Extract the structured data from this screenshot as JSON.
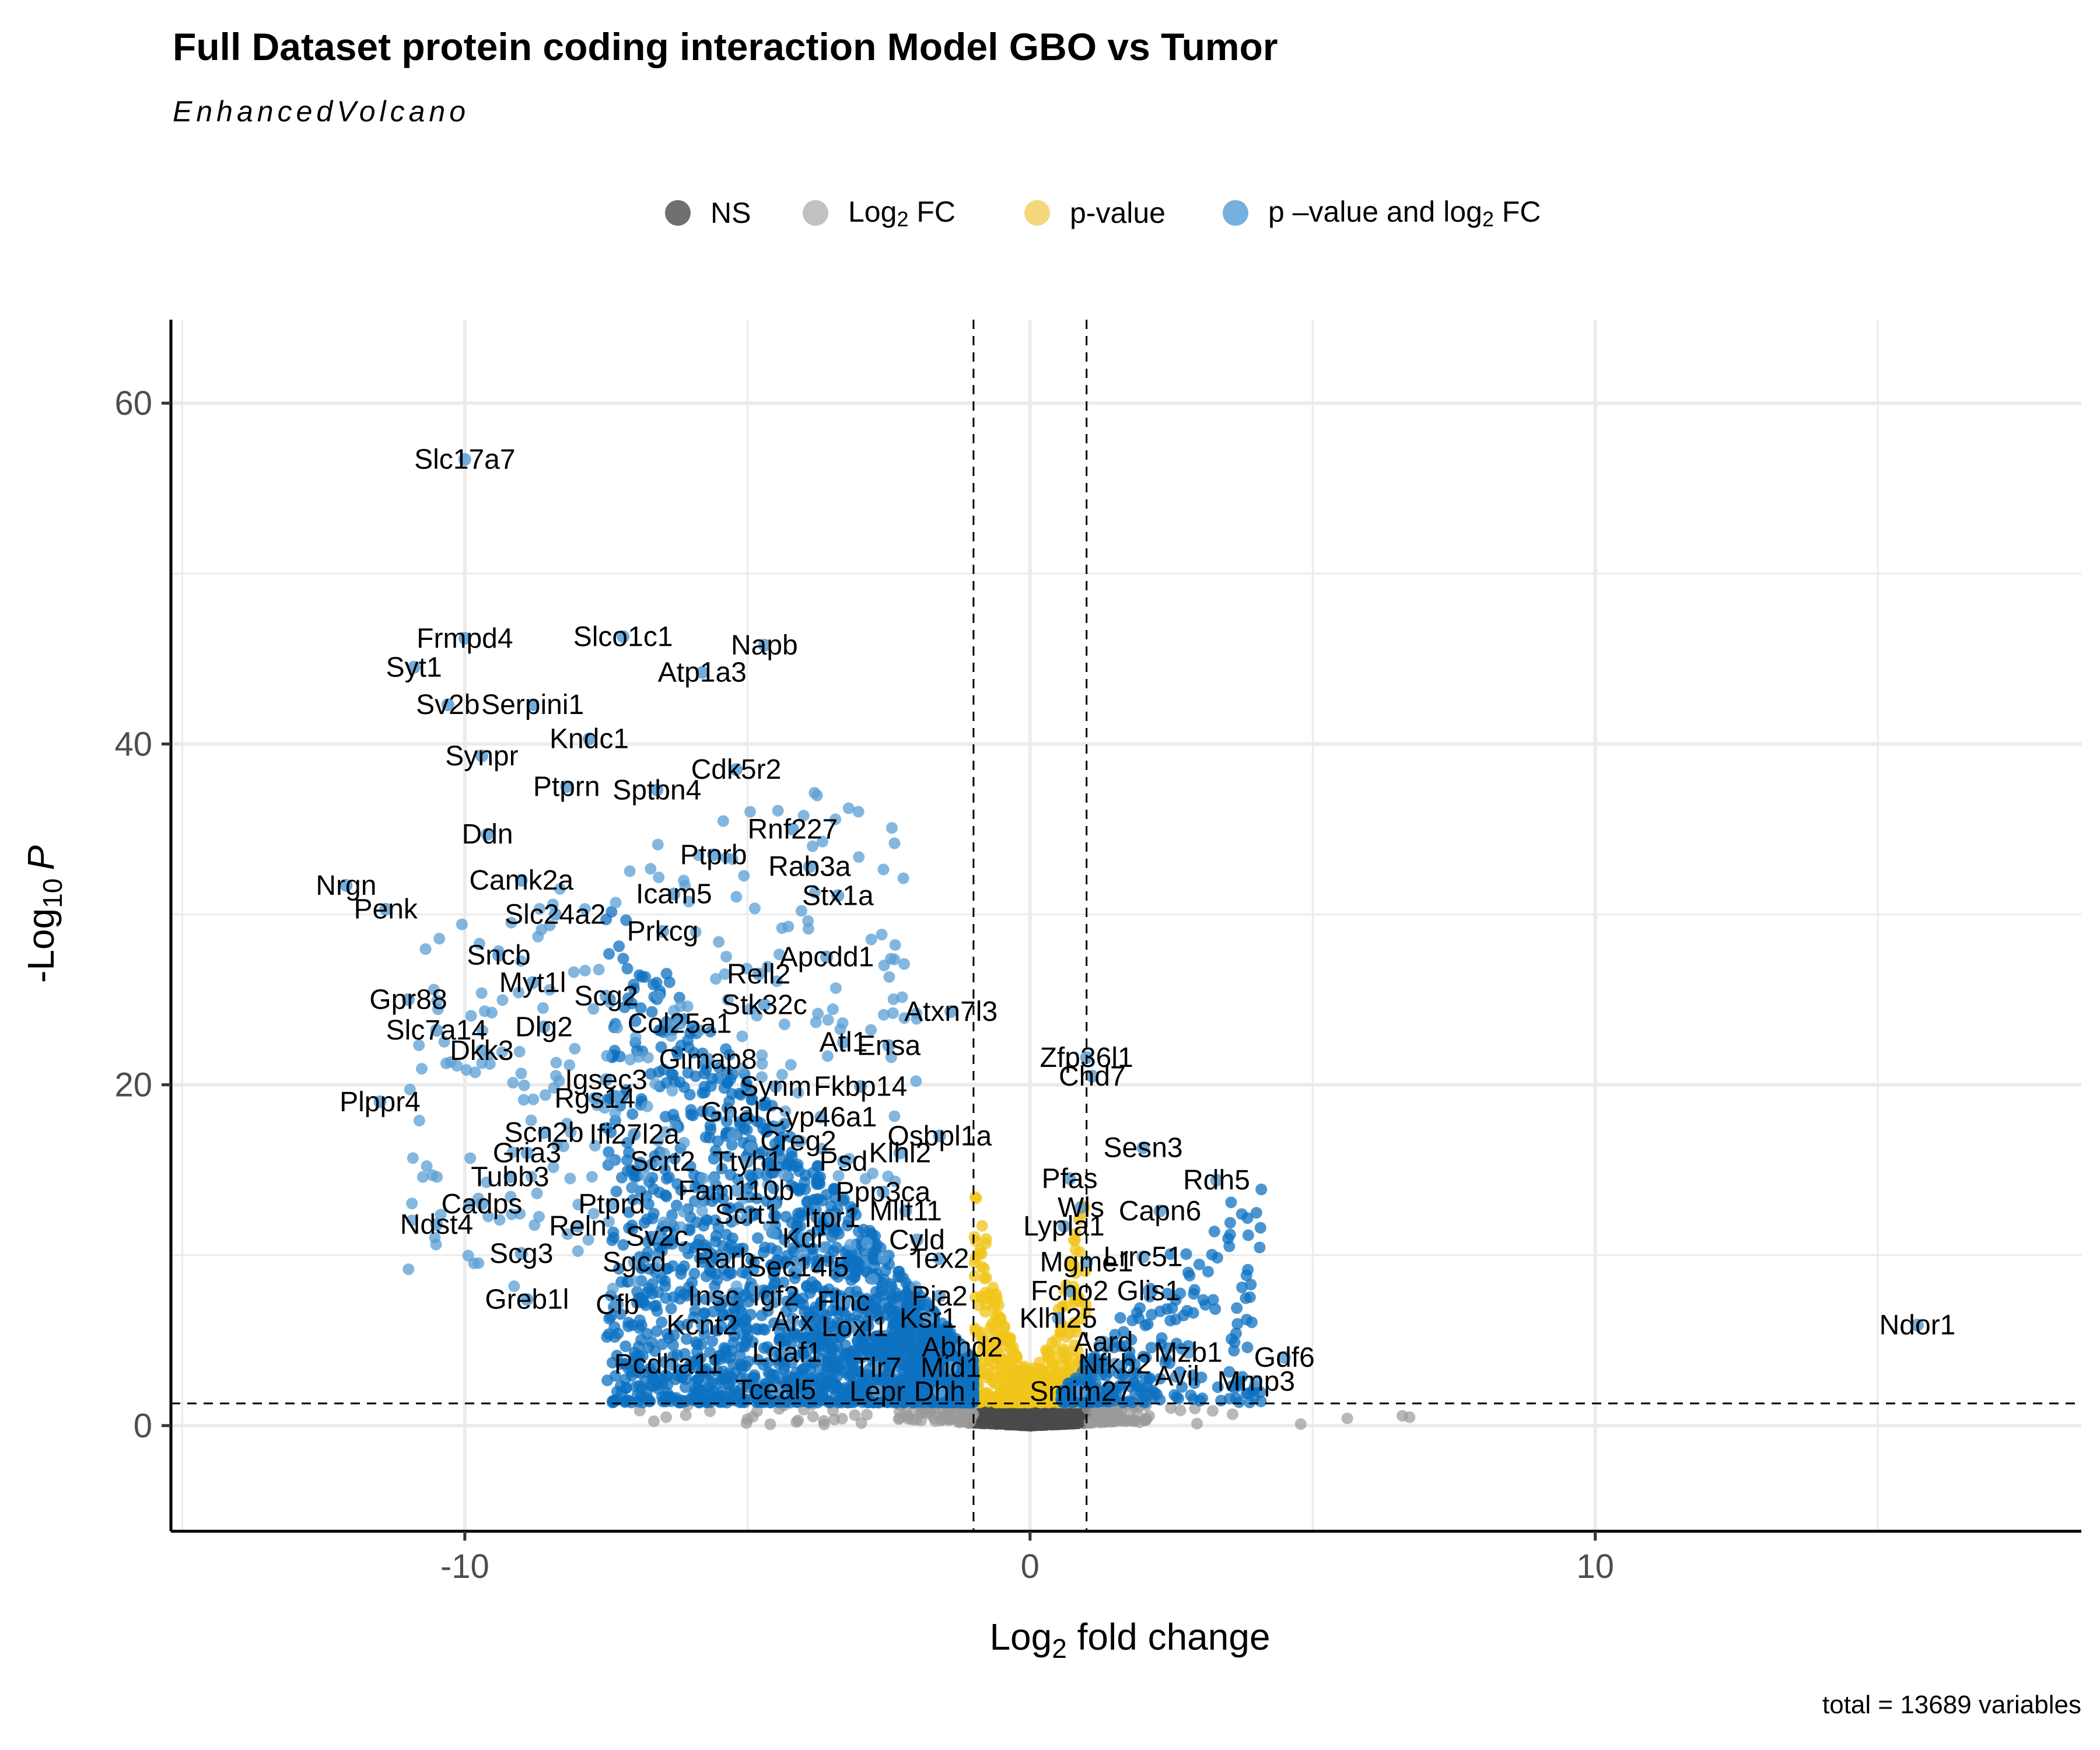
{
  "chart_data": {
    "type": "scatter",
    "title": "Full Dataset protein coding interaction Model GBO vs Tumor",
    "subtitle": "EnhancedVolcano",
    "caption": "total = 13689 variables",
    "xlabel_main": "Log",
    "xlabel_sub": "2",
    "xlabel_rest": " fold change",
    "ylabel_main": "-Log",
    "ylabel_sub": "10",
    "ylabel_var": "P",
    "xlim": [
      -15.2,
      18.6
    ],
    "ylim": [
      -6.2,
      64.9
    ],
    "x_ticks": [
      -10,
      0,
      10
    ],
    "x_tick_labels": [
      "-10",
      "0",
      "10"
    ],
    "y_ticks": [
      0,
      20,
      40,
      60
    ],
    "y_tick_labels": [
      "0",
      "20",
      "40",
      "60"
    ],
    "grid": true,
    "legend_position": "top",
    "fc_cutoff": [
      -1,
      1
    ],
    "p_cutoff_neglog10": 1.3,
    "legend": [
      {
        "label_main": "NS",
        "label_sub": "",
        "label_rest": "",
        "color": "#3f3f3f"
      },
      {
        "label_main": "Log",
        "label_sub": "2",
        "label_rest": " FC",
        "color": "#a6a6a6"
      },
      {
        "label_main": "p-value",
        "label_sub": "",
        "label_rest": "",
        "color": "#f2c744"
      },
      {
        "label_main": "p –value and log",
        "label_sub": "2",
        "label_rest": " FC",
        "color": "#3b8ed0"
      }
    ],
    "colors": {
      "NS": "#4a4a4a",
      "FC": "#9a9a9a",
      "P": "#f0c419",
      "both": "#0e72c2",
      "both_labeled": "#5a9fd6"
    },
    "labeled_points": [
      {
        "gene": "Slc17a7",
        "x": -10.0,
        "y": 56.7
      },
      {
        "gene": "Frmpd4",
        "x": -10.0,
        "y": 46.2
      },
      {
        "gene": "Slco1c1",
        "x": -7.2,
        "y": 46.3
      },
      {
        "gene": "Napb",
        "x": -4.7,
        "y": 45.8
      },
      {
        "gene": "Syt1",
        "x": -10.9,
        "y": 44.5
      },
      {
        "gene": "Atp1a3",
        "x": -5.8,
        "y": 44.2
      },
      {
        "gene": "Sv2b",
        "x": -10.3,
        "y": 42.3
      },
      {
        "gene": "Serpini1",
        "x": -8.8,
        "y": 42.3
      },
      {
        "gene": "Kndc1",
        "x": -7.8,
        "y": 40.3
      },
      {
        "gene": "Synpr",
        "x": -9.7,
        "y": 39.3
      },
      {
        "gene": "Cdk5r2",
        "x": -5.2,
        "y": 38.5
      },
      {
        "gene": "Ptprn",
        "x": -8.2,
        "y": 37.5
      },
      {
        "gene": "Sptbn4",
        "x": -6.6,
        "y": 37.3
      },
      {
        "gene": "Ddn",
        "x": -9.6,
        "y": 34.7
      },
      {
        "gene": "Rnf227",
        "x": -4.2,
        "y": 35.0
      },
      {
        "gene": "Ptprb",
        "x": -5.6,
        "y": 33.5
      },
      {
        "gene": "Rab3a",
        "x": -3.9,
        "y": 32.8
      },
      {
        "gene": "Camk2a",
        "x": -9.0,
        "y": 32.0
      },
      {
        "gene": "Nrgn",
        "x": -12.1,
        "y": 31.7
      },
      {
        "gene": "Icam5",
        "x": -6.3,
        "y": 31.2
      },
      {
        "gene": "Stx1a",
        "x": -3.4,
        "y": 31.1
      },
      {
        "gene": "Penk",
        "x": -11.4,
        "y": 30.3
      },
      {
        "gene": "Slc24a2",
        "x": -8.4,
        "y": 30.0
      },
      {
        "gene": "Prkcg",
        "x": -6.5,
        "y": 29.0
      },
      {
        "gene": "Apcdd1",
        "x": -3.6,
        "y": 27.5
      },
      {
        "gene": "Sncb",
        "x": -9.4,
        "y": 27.6
      },
      {
        "gene": "Rell2",
        "x": -4.8,
        "y": 26.5
      },
      {
        "gene": "Myt1l",
        "x": -8.8,
        "y": 26.0
      },
      {
        "gene": "Gpr88",
        "x": -11.0,
        "y": 25.0
      },
      {
        "gene": "Scg2",
        "x": -7.5,
        "y": 25.2
      },
      {
        "gene": "Stk32c",
        "x": -4.7,
        "y": 24.7
      },
      {
        "gene": "Atxn7l3",
        "x": -1.4,
        "y": 24.3
      },
      {
        "gene": "Slc7a14",
        "x": -10.5,
        "y": 23.2
      },
      {
        "gene": "Dlg2",
        "x": -8.6,
        "y": 23.4
      },
      {
        "gene": "Col25a1",
        "x": -6.2,
        "y": 23.6
      },
      {
        "gene": "Atl1",
        "x": -3.3,
        "y": 22.5
      },
      {
        "gene": "Ensa",
        "x": -2.5,
        "y": 22.3
      },
      {
        "gene": "Zfp36l1",
        "x": 1.0,
        "y": 21.6
      },
      {
        "gene": "Dkk3",
        "x": -9.7,
        "y": 22.0
      },
      {
        "gene": "Gimap8",
        "x": -5.7,
        "y": 21.5
      },
      {
        "gene": "Chd7",
        "x": 1.1,
        "y": 20.5
      },
      {
        "gene": "Igsec3",
        "x": -7.5,
        "y": 20.3
      },
      {
        "gene": "Fkbp14",
        "x": -3.0,
        "y": 19.9
      },
      {
        "gene": "Synm",
        "x": -4.5,
        "y": 19.9
      },
      {
        "gene": "Rgs14",
        "x": -7.7,
        "y": 19.2
      },
      {
        "gene": "Plppr4",
        "x": -11.5,
        "y": 19.0
      },
      {
        "gene": "Gnal",
        "x": -5.3,
        "y": 18.4
      },
      {
        "gene": "Cyp46a1",
        "x": -3.7,
        "y": 18.1
      },
      {
        "gene": "Scn2b",
        "x": -8.6,
        "y": 17.2
      },
      {
        "gene": "Ifi27l2a",
        "x": -7.0,
        "y": 17.1
      },
      {
        "gene": "Osbpl1a",
        "x": -1.6,
        "y": 17.0
      },
      {
        "gene": "Creg2",
        "x": -4.1,
        "y": 16.7
      },
      {
        "gene": "Sesn3",
        "x": 2.0,
        "y": 16.3
      },
      {
        "gene": "Gria3",
        "x": -8.9,
        "y": 16.0
      },
      {
        "gene": "Klhl2",
        "x": -2.3,
        "y": 16.0
      },
      {
        "gene": "Scrt2",
        "x": -6.5,
        "y": 15.5
      },
      {
        "gene": "Ttyh1",
        "x": -5.0,
        "y": 15.5
      },
      {
        "gene": "Psd",
        "x": -3.3,
        "y": 15.5
      },
      {
        "gene": "Tubb3",
        "x": -9.2,
        "y": 14.6
      },
      {
        "gene": "Pfas",
        "x": 0.7,
        "y": 14.5
      },
      {
        "gene": "Rdh5",
        "x": 3.3,
        "y": 14.4
      },
      {
        "gene": "Fam110b",
        "x": -5.2,
        "y": 13.8
      },
      {
        "gene": "Ppp3ca",
        "x": -2.6,
        "y": 13.7
      },
      {
        "gene": "Cadps",
        "x": -9.7,
        "y": 13.0
      },
      {
        "gene": "Ptprd",
        "x": -7.4,
        "y": 13.0
      },
      {
        "gene": "Wls",
        "x": 0.9,
        "y": 12.8
      },
      {
        "gene": "Scrt1",
        "x": -5.0,
        "y": 12.4
      },
      {
        "gene": "Mllt11",
        "x": -2.2,
        "y": 12.6
      },
      {
        "gene": "Capn6",
        "x": 2.3,
        "y": 12.6
      },
      {
        "gene": "Itpr1",
        "x": -3.5,
        "y": 12.2
      },
      {
        "gene": "Ndst4",
        "x": -10.5,
        "y": 11.8
      },
      {
        "gene": "Reln",
        "x": -8.0,
        "y": 11.7
      },
      {
        "gene": "Lypla1",
        "x": 0.6,
        "y": 11.7
      },
      {
        "gene": "Sv2c",
        "x": -6.6,
        "y": 11.1
      },
      {
        "gene": "Kdr",
        "x": -4.0,
        "y": 11.0
      },
      {
        "gene": "Cyld",
        "x": -2.0,
        "y": 10.9
      },
      {
        "gene": "Scg3",
        "x": -9.0,
        "y": 10.1
      },
      {
        "gene": "Sgcd",
        "x": -7.0,
        "y": 9.6
      },
      {
        "gene": "Rarb",
        "x": -5.4,
        "y": 9.8
      },
      {
        "gene": "Lrrc51",
        "x": 2.0,
        "y": 9.9
      },
      {
        "gene": "Tex2",
        "x": -1.6,
        "y": 9.8
      },
      {
        "gene": "Mgme1",
        "x": 1.0,
        "y": 9.6
      },
      {
        "gene": "Sec14l5",
        "x": -4.1,
        "y": 9.3
      },
      {
        "gene": "Glis1",
        "x": 2.1,
        "y": 7.9
      },
      {
        "gene": "Fcho2",
        "x": 0.7,
        "y": 7.9
      },
      {
        "gene": "Greb1l",
        "x": -8.9,
        "y": 7.4
      },
      {
        "gene": "Cfb",
        "x": -7.3,
        "y": 7.1
      },
      {
        "gene": "Insc",
        "x": -5.6,
        "y": 7.6
      },
      {
        "gene": "Igf2",
        "x": -4.5,
        "y": 7.6
      },
      {
        "gene": "Flnc",
        "x": -3.3,
        "y": 7.3
      },
      {
        "gene": "Pja2",
        "x": -1.6,
        "y": 7.6
      },
      {
        "gene": "Ksr1",
        "x": -1.8,
        "y": 6.3
      },
      {
        "gene": "Klhl25",
        "x": 0.5,
        "y": 6.3
      },
      {
        "gene": "Ndor1",
        "x": 15.7,
        "y": 5.9
      },
      {
        "gene": "Kcnt2",
        "x": -5.8,
        "y": 5.9
      },
      {
        "gene": "Arx",
        "x": -4.2,
        "y": 6.1
      },
      {
        "gene": "Loxl1",
        "x": -3.1,
        "y": 5.8
      },
      {
        "gene": "Aard",
        "x": 1.3,
        "y": 4.9
      },
      {
        "gene": "Mzb1",
        "x": 2.8,
        "y": 4.3
      },
      {
        "gene": "Abhd2",
        "x": -1.2,
        "y": 4.6
      },
      {
        "gene": "Gdf6",
        "x": 4.5,
        "y": 4.0
      },
      {
        "gene": "Ldaf1",
        "x": -4.3,
        "y": 4.3
      },
      {
        "gene": "Pcdha11",
        "x": -6.4,
        "y": 3.6
      },
      {
        "gene": "Nfkb2",
        "x": 1.5,
        "y": 3.6
      },
      {
        "gene": "Tlr7",
        "x": -2.7,
        "y": 3.4
      },
      {
        "gene": "Mid1",
        "x": -1.4,
        "y": 3.4
      },
      {
        "gene": "Avil",
        "x": 2.6,
        "y": 2.9
      },
      {
        "gene": "Mmp3",
        "x": 4.0,
        "y": 2.6
      },
      {
        "gene": "Tceal5",
        "x": -4.5,
        "y": 2.1
      },
      {
        "gene": "Lepr",
        "x": -2.7,
        "y": 2.0
      },
      {
        "gene": "Dhh",
        "x": -1.6,
        "y": 2.0
      },
      {
        "gene": "Smim27",
        "x": 0.9,
        "y": 2.0
      }
    ]
  }
}
